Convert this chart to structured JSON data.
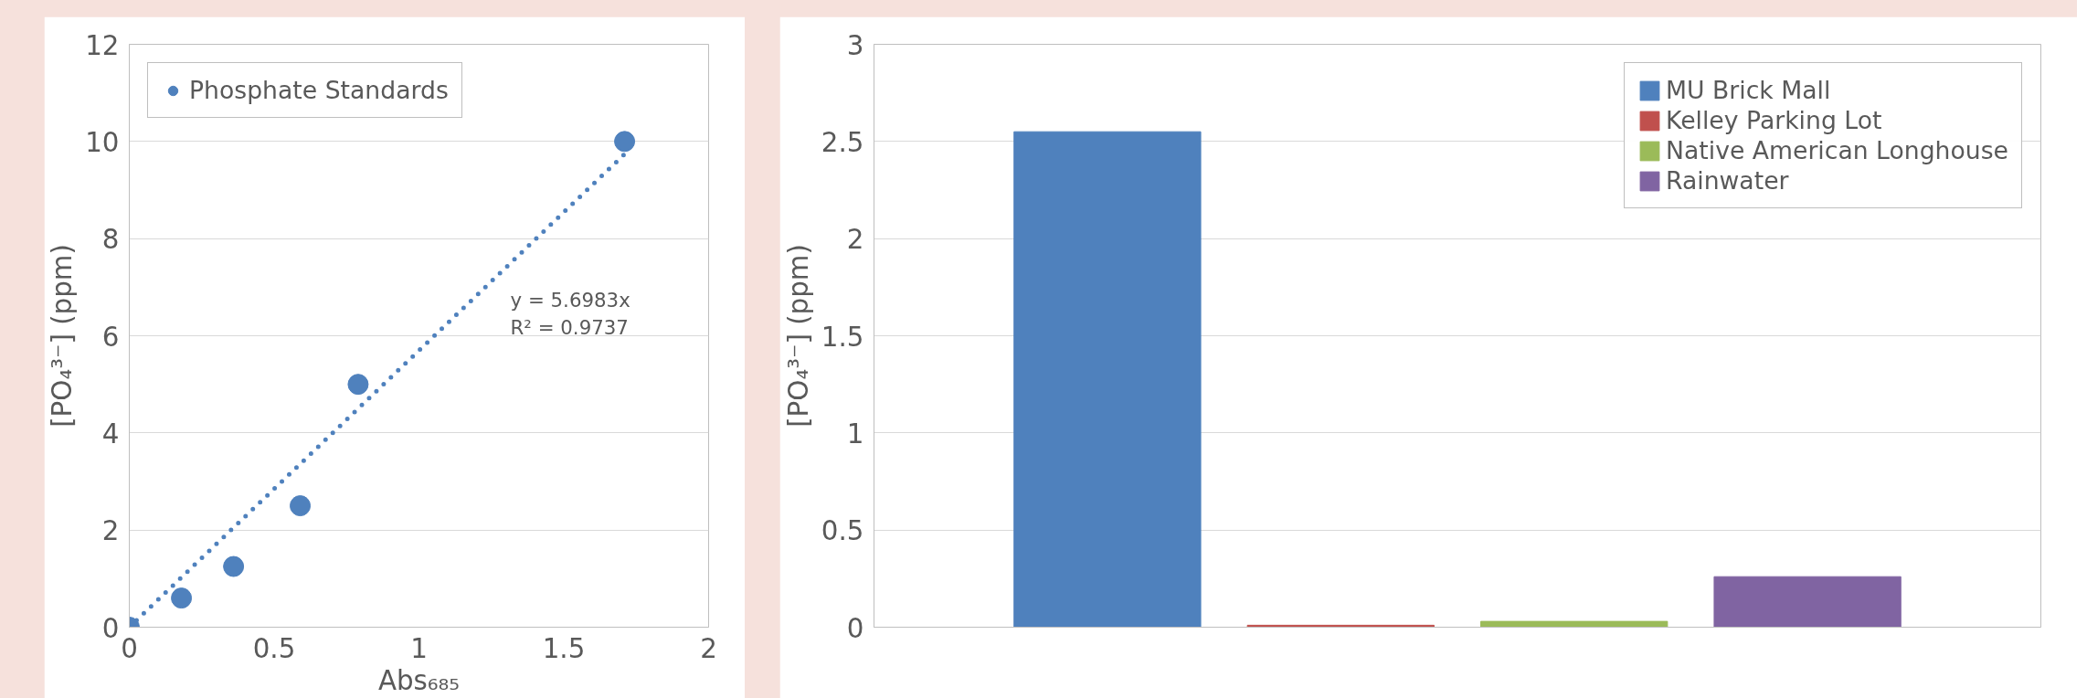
{
  "chart_data": [
    {
      "type": "scatter",
      "xlabel": "Abs₆₈₅",
      "ylabel": "[PO₄³⁻] (ppm)",
      "xlim": [
        0,
        2
      ],
      "xticks": [
        0,
        0.5,
        1,
        1.5,
        2
      ],
      "ylim": [
        0,
        12
      ],
      "yticks": [
        0,
        2,
        4,
        6,
        8,
        10,
        12
      ],
      "grid": "y",
      "legend": "top left",
      "marker": "circle",
      "series": [
        {
          "name": "Phosphate Standards",
          "color": "#4f81bd",
          "x": [
            0,
            0.18,
            0.36,
            0.59,
            0.79,
            1.71
          ],
          "values": [
            0,
            0.6,
            1.25,
            2.5,
            5,
            10
          ]
        },
        {
          "type": "line",
          "line_style": "dotted",
          "marker": "none",
          "color": "#4f81bd",
          "x": [
            0,
            1.71
          ],
          "values": [
            0,
            9.74
          ]
        }
      ],
      "annotations": [
        "y = 5.6983x",
        "R² = 0.9737"
      ]
    },
    {
      "type": "bar",
      "ylabel": "[PO₄³⁻] (ppm)",
      "categories": [
        null
      ],
      "ylim": [
        0,
        3
      ],
      "yticks": [
        0,
        0.5,
        1,
        1.5,
        2,
        2.5,
        3
      ],
      "grid": "y",
      "legend": "top right",
      "series": [
        {
          "name": "MU Brick Mall",
          "color": "#4f81bd",
          "values": [
            2.55
          ]
        },
        {
          "name": "Kelley Parking Lot",
          "color": "#c0504d",
          "values": [
            0.01
          ]
        },
        {
          "name": "Native American Longhouse",
          "color": "#9bbb59",
          "values": [
            0.03
          ]
        },
        {
          "name": "Rainwater",
          "color": "#8064a2",
          "values": [
            0.26
          ]
        }
      ]
    }
  ]
}
